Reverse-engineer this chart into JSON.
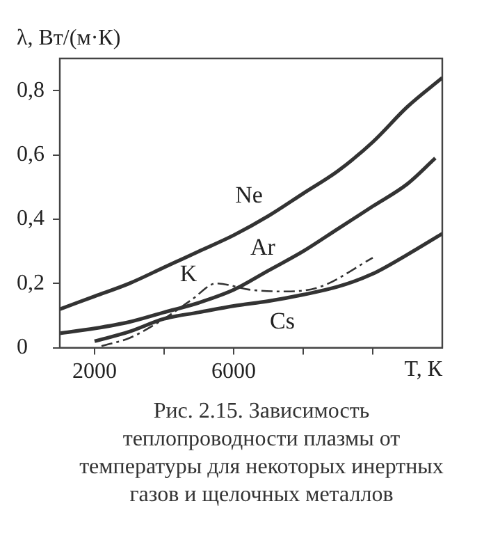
{
  "chart_data": {
    "type": "line",
    "ylabel": "λ, Вт/(м·К)",
    "xlabel": "T, К",
    "xlim": [
      1000,
      12000
    ],
    "ylim": [
      0,
      0.9
    ],
    "xticks": [
      2000,
      {
        "value": 4000,
        "label": null
      },
      6000,
      {
        "value": 8000,
        "label": null
      },
      {
        "value": 10000,
        "label": null
      }
    ],
    "yticks": [
      0,
      {
        "value": 0.2,
        "label": "0,2"
      },
      {
        "value": 0.4,
        "label": "0,4"
      },
      {
        "value": 0.6,
        "label": "0,6"
      },
      {
        "value": 0.8,
        "label": "0,8"
      }
    ],
    "grid": false,
    "marker": "none",
    "series": [
      {
        "name": "Ne",
        "color": "#333333",
        "x": [
          1000,
          2000,
          3000,
          4000,
          5000,
          6000,
          7000,
          8000,
          9000,
          10000,
          11000,
          12000
        ],
        "values": [
          0.12,
          0.16,
          0.2,
          0.25,
          0.3,
          0.35,
          0.41,
          0.48,
          0.55,
          0.64,
          0.75,
          0.84
        ]
      },
      {
        "name": "Ar",
        "color": "#333333",
        "x": [
          1000,
          2000,
          3000,
          4000,
          5000,
          6000,
          7000,
          8000,
          9000,
          10000,
          11000,
          11800
        ],
        "values": [
          0.045,
          0.06,
          0.08,
          0.11,
          0.14,
          0.18,
          0.24,
          0.3,
          0.37,
          0.44,
          0.51,
          0.59
        ]
      },
      {
        "name": "Cs",
        "color": "#333333",
        "x": [
          2000,
          3000,
          4000,
          5000,
          6000,
          7000,
          8000,
          9000,
          10000,
          11000,
          12000
        ],
        "values": [
          0.02,
          0.05,
          0.09,
          0.11,
          0.13,
          0.145,
          0.165,
          0.19,
          0.23,
          0.29,
          0.355
        ]
      },
      {
        "name": "K",
        "color": "#333333",
        "line_style": "dashed",
        "x": [
          2200,
          3000,
          4000,
          4800,
          5500,
          6500,
          7500,
          8500,
          10000
        ],
        "values": [
          0.005,
          0.03,
          0.09,
          0.15,
          0.2,
          0.18,
          0.175,
          0.19,
          0.28
        ]
      }
    ],
    "annotations": [
      "Рис. 2.15. Зависимость теплопроводности плазмы от температуры для некоторых инертных газов и щелочных металлов"
    ]
  }
}
